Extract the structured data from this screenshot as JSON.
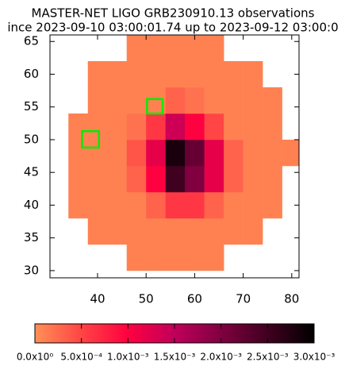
{
  "chart_data": {
    "type": "heatmap",
    "title": "MASTER-NET LIGO GRB230910.13 observations",
    "subtitle": "ince 2023-09-10 03:00:01.74 up to 2023-09-12 03:00:0",
    "x": [
      36,
      40,
      44,
      48,
      52,
      56,
      60,
      64,
      68,
      72,
      76,
      80
    ],
    "y": [
      32,
      36,
      40,
      44,
      48,
      52,
      56,
      60,
      64
    ],
    "z": [
      [
        null,
        null,
        null,
        0.0001,
        0.0001,
        0.0001,
        0.0001,
        0.0001,
        null,
        null,
        null,
        null
      ],
      [
        null,
        0.0001,
        0.0001,
        0.0001,
        0.0001,
        0.0001,
        0.0001,
        0.0001,
        0.0001,
        0.0001,
        null,
        null
      ],
      [
        0.0001,
        0.0001,
        0.0001,
        0.0001,
        0.0003,
        0.0006,
        0.0006,
        0.0003,
        0.0001,
        0.0001,
        0.0001,
        null
      ],
      [
        0.0001,
        0.0001,
        0.0001,
        0.0003,
        0.001,
        0.0025,
        0.002,
        0.0012,
        0.0003,
        0.0001,
        0.0001,
        null
      ],
      [
        0.0001,
        0.0001,
        0.0001,
        0.0004,
        0.0012,
        0.0028,
        0.0022,
        0.0012,
        0.0003,
        0.0001,
        0.0001,
        0.0001
      ],
      [
        0.0001,
        0.0001,
        0.0001,
        0.0002,
        0.0006,
        0.0014,
        0.001,
        0.0005,
        0.0001,
        0.0001,
        0.0001,
        null
      ],
      [
        null,
        0.0001,
        0.0001,
        0.0001,
        0.0001,
        0.0003,
        0.0002,
        0.0001,
        0.0001,
        0.0001,
        0.0001,
        null
      ],
      [
        null,
        0.0001,
        0.0001,
        0.0001,
        0.0001,
        0.0001,
        0.0001,
        0.0001,
        0.0001,
        0.0001,
        null,
        null
      ],
      [
        null,
        null,
        null,
        0.0001,
        0.0001,
        0.0001,
        0.0001,
        0.0001,
        null,
        null,
        null,
        null
      ]
    ],
    "xlim": [
      30.2,
      81.5
    ],
    "ylim": [
      28.9,
      66
    ],
    "xticks": [
      40,
      50,
      60,
      70,
      80
    ],
    "yticks": [
      30,
      35,
      40,
      45,
      50,
      55,
      60,
      65
    ],
    "fields": [
      {
        "x": [
          36.8,
          40.3
        ],
        "y": [
          48.8,
          51.3
        ]
      },
      {
        "x": [
          50.2,
          53.4
        ],
        "y": [
          54,
          56.2
        ]
      }
    ],
    "field_color": "#00ee00",
    "colormap": [
      "#ff9055",
      "#ff4545",
      "#ff0040",
      "#c0005a",
      "#800040",
      "#400020",
      "#000000"
    ],
    "cblim": [
      0,
      0.003
    ],
    "cbticks": [
      {
        "value": 0,
        "label": "0.0x10⁰"
      },
      {
        "value": 0.0005,
        "label": "5.0x10⁻⁴"
      },
      {
        "value": 0.001,
        "label": "1.0x10⁻³"
      },
      {
        "value": 0.0015,
        "label": "1.5x10⁻³"
      },
      {
        "value": 0.002,
        "label": "2.0x10⁻³"
      },
      {
        "value": 0.0025,
        "label": "2.5x10⁻³"
      },
      {
        "value": 0.003,
        "label": "3.0x10⁻³"
      }
    ]
  }
}
